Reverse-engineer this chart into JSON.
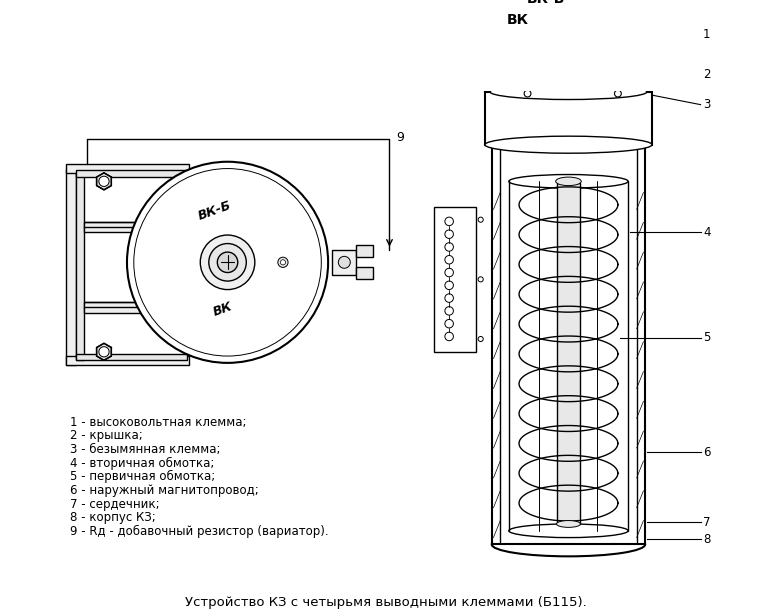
{
  "bg_color": "#ffffff",
  "line_color": "#000000",
  "title": "Устройство КЗ с четырьмя выводными клеммами (Б115).",
  "title_fontsize": 9.5,
  "legend_items": [
    "1 - высоковольтная клемма;",
    "2 - крышка;",
    "3 - безымянная клемма;",
    "4 - вторичная обмотка;",
    "5 - первичная обмотка;",
    "6 - наружный магнитопровод;",
    "7 - сердечник;",
    "8 - корпус КЗ;",
    "9 - Rд - добавочный резистор (вариатор)."
  ],
  "legend_fontsize": 8.5,
  "label_vk_b": "ВК-Б",
  "label_vk": "ВК",
  "label_9": "9"
}
